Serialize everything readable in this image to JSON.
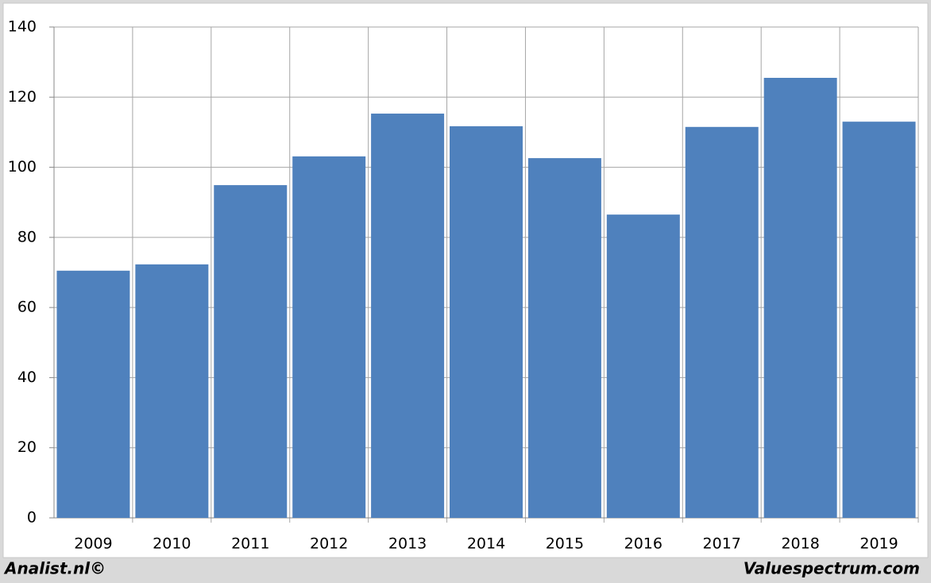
{
  "chart_data": {
    "type": "bar",
    "categories": [
      "2009",
      "2010",
      "2011",
      "2012",
      "2013",
      "2014",
      "2015",
      "2016",
      "2017",
      "2018",
      "2019"
    ],
    "values": [
      70.5,
      72.3,
      94.9,
      103.1,
      115.3,
      111.7,
      102.6,
      86.5,
      111.5,
      125.5,
      113.0
    ],
    "color": "#4f81bd",
    "ylim": [
      0,
      140
    ],
    "yticks": [
      0,
      20,
      40,
      60,
      80,
      100,
      120,
      140
    ],
    "grid": true,
    "source_left": "Analist.nl©",
    "source_right": "Valuespectrum.com"
  }
}
